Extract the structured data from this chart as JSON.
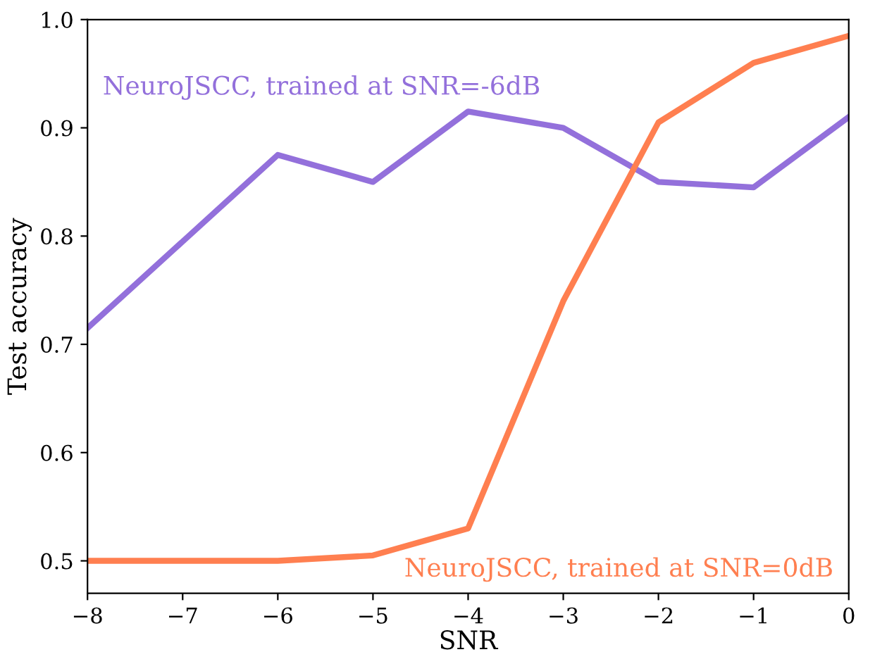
{
  "chart_data": {
    "type": "line",
    "xlabel": "SNR",
    "ylabel": "Test accuracy",
    "x": [
      -8,
      -7,
      -6,
      -5,
      -4,
      -3,
      -2,
      -1,
      0
    ],
    "series": [
      {
        "name": "NeuroJSCC, trained at SNR=-6dB",
        "color": "#9370db",
        "values": [
          0.715,
          0.795,
          0.875,
          0.85,
          0.915,
          0.9,
          0.85,
          0.845,
          0.91
        ]
      },
      {
        "name": "NeuroJSCC, trained at SNR=0dB",
        "color": "#ff7f50",
        "values": [
          0.5,
          0.5,
          0.5,
          0.505,
          0.53,
          0.74,
          0.905,
          0.96,
          0.985
        ]
      }
    ],
    "xlim": [
      -8,
      0
    ],
    "ylim": [
      0.47,
      1.0
    ],
    "xticks": [
      {
        "value": -8,
        "label": "−8"
      },
      {
        "value": -7,
        "label": "−7"
      },
      {
        "value": -6,
        "label": "−6"
      },
      {
        "value": -5,
        "label": "−5"
      },
      {
        "value": -4,
        "label": "−4"
      },
      {
        "value": -3,
        "label": "−3"
      },
      {
        "value": -2,
        "label": "−2"
      },
      {
        "value": -1,
        "label": "−1"
      },
      0
    ],
    "yticks": [
      0.5,
      0.6,
      0.7,
      0.8,
      0.9,
      {
        "value": 1,
        "label": "1.0"
      }
    ],
    "grid": false,
    "marker": "none",
    "line_style": "solid"
  }
}
